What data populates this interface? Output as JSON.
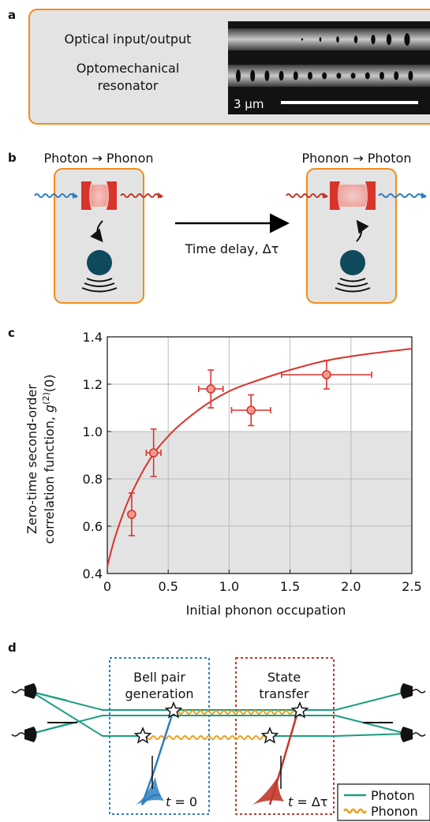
{
  "panels": {
    "a": {
      "label": "a",
      "text_input": "Optical input/output",
      "text_resonator_1": "Optomechanical",
      "text_resonator_2": "resonator",
      "scale_bar": "3 μm"
    },
    "b": {
      "label": "b",
      "left_title": "Photon → Phonon",
      "right_title": "Phonon → Photon",
      "delay_label": "Time delay, Δτ",
      "colors": {
        "photon_in": "#2e7fc1",
        "photon_out": "#c0392b",
        "mirror": "#d9342b",
        "phonon": "#0e4a5c",
        "box": "#f28c1a"
      }
    },
    "c": {
      "label": "c",
      "ylabel_1": "Zero-time second-order",
      "ylabel_2": "correlation function,",
      "ylabel_g": "g",
      "ylabel_sup": "(2)",
      "ylabel_arg": "(0)",
      "xlabel": "Initial phonon occupation",
      "xticks": [
        "0",
        "0.5",
        "1.0",
        "1.5",
        "2.0",
        "2.5"
      ],
      "yticks": [
        "0.4",
        "0.6",
        "0.8",
        "1.0",
        "1.2",
        "1.4"
      ]
    },
    "d": {
      "label": "d",
      "box1_line1": "Bell pair",
      "box1_line2": "generation",
      "box2_line1": "State",
      "box2_line2": "transfer",
      "t0_var": "t",
      "t0_rest": " = 0",
      "t1_var": "t",
      "t1_rest": " = Δτ",
      "legend_photon": "Photon",
      "legend_phonon": "Phonon",
      "colors": {
        "photon": "#1a9e80",
        "phonon": "#f0a020",
        "blue_box": "#2e7fc1",
        "red_box": "#c0392b"
      }
    }
  },
  "chart_data": {
    "type": "scatter",
    "xlabel": "Initial phonon occupation",
    "ylabel": "Zero-time second-order correlation function, g(2)(0)",
    "xlim": [
      0,
      2.5
    ],
    "ylim": [
      0.4,
      1.4
    ],
    "grid": true,
    "shaded_below_y": 1.0,
    "points": [
      {
        "x": 0.2,
        "y": 0.65,
        "xerr": 0.02,
        "yerr": 0.09
      },
      {
        "x": 0.38,
        "y": 0.91,
        "xerr": 0.06,
        "yerr": 0.1
      },
      {
        "x": 0.85,
        "y": 1.18,
        "xerr": 0.1,
        "yerr": 0.08
      },
      {
        "x": 1.18,
        "y": 1.09,
        "xerr": 0.16,
        "yerr": 0.065
      },
      {
        "x": 1.8,
        "y": 1.24,
        "xerr": 0.37,
        "yerr": 0.06
      }
    ],
    "model_curve": {
      "x": [
        0.0,
        0.05,
        0.1,
        0.15,
        0.2,
        0.3,
        0.4,
        0.5,
        0.6,
        0.8,
        1.0,
        1.2,
        1.5,
        1.8,
        2.1,
        2.5
      ],
      "y": [
        0.43,
        0.53,
        0.61,
        0.68,
        0.74,
        0.84,
        0.92,
        0.98,
        1.03,
        1.11,
        1.17,
        1.21,
        1.26,
        1.3,
        1.325,
        1.35
      ]
    }
  }
}
